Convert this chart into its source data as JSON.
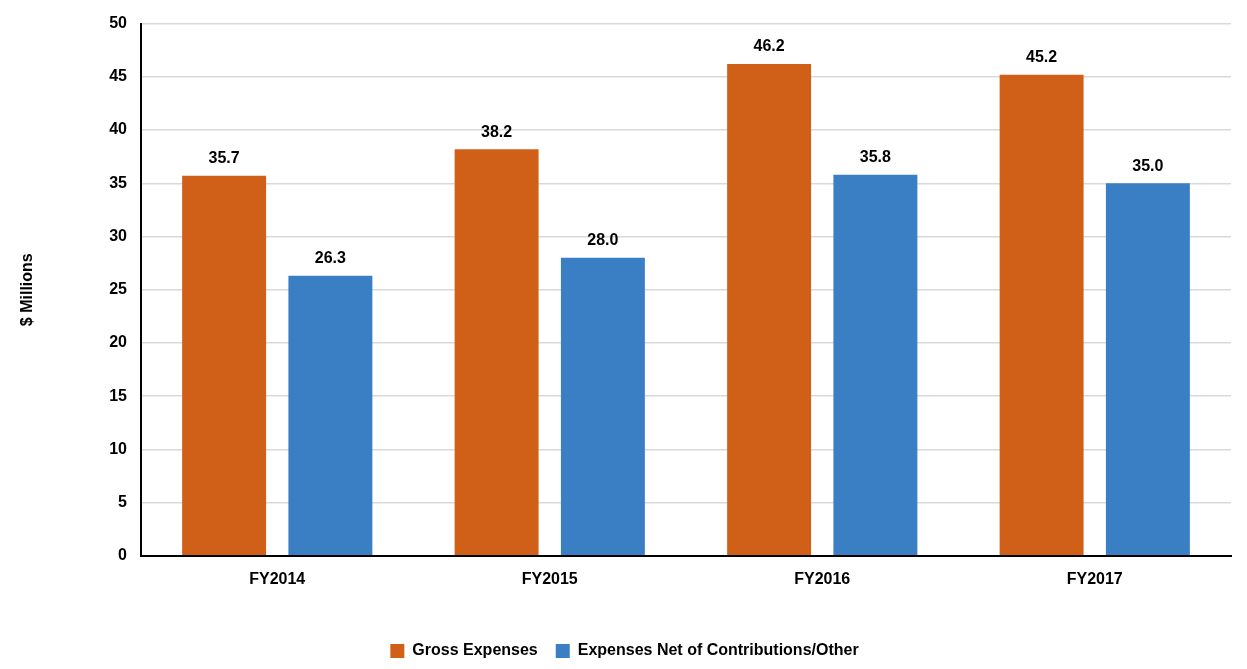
{
  "chart_data": {
    "type": "bar",
    "ylabel": "$ Millions",
    "categories": [
      "FY2014",
      "FY2015",
      "FY2016",
      "FY2017"
    ],
    "series": [
      {
        "name": "Gross Expenses",
        "color": "#d06018",
        "values": [
          35.7,
          38.2,
          46.2,
          45.2
        ],
        "value_labels": [
          "35.7",
          "38.2",
          "46.2",
          "45.2"
        ]
      },
      {
        "name": "Expenses Net of Contributions/Other",
        "color": "#3a7ec4",
        "values": [
          26.3,
          28.0,
          35.8,
          35.0
        ],
        "value_labels": [
          "26.3",
          "28.0",
          "35.8",
          "35.0"
        ]
      }
    ],
    "ylim": [
      0,
      50
    ],
    "yticks": [
      0,
      5,
      10,
      15,
      20,
      25,
      30,
      35,
      40,
      45,
      50
    ],
    "grid": "y",
    "legend": "bottom"
  }
}
